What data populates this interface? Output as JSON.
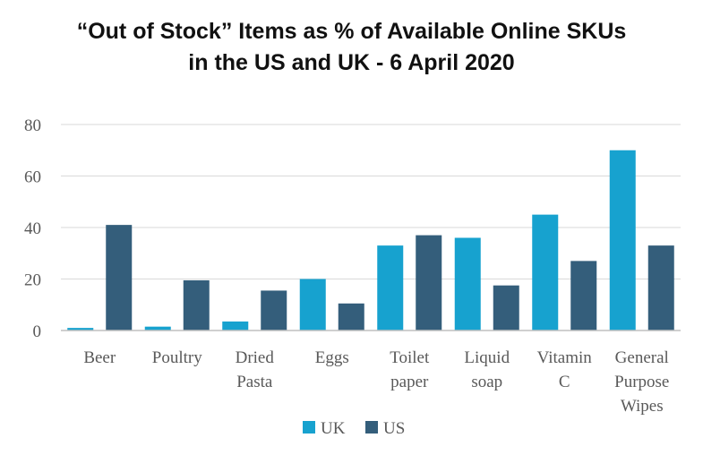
{
  "chart_data": {
    "type": "bar",
    "title_line1": "“Out of Stock” Items as % of Available Online SKUs",
    "title_line2": "in the US and UK - 6 April 2020",
    "categories": [
      [
        "Beer"
      ],
      [
        "Poultry"
      ],
      [
        "Dried",
        "Pasta"
      ],
      [
        "Eggs"
      ],
      [
        "Toilet",
        "paper"
      ],
      [
        "Liquid",
        "soap"
      ],
      [
        "Vitamin",
        "C"
      ],
      [
        "General",
        "Purpose",
        "Wipes"
      ]
    ],
    "series": [
      {
        "name": "UK",
        "color": "#17a2cf",
        "values": [
          1,
          1.5,
          3.5,
          20,
          33,
          36,
          45,
          70
        ]
      },
      {
        "name": "US",
        "color": "#345e7b",
        "values": [
          41,
          19.5,
          15.5,
          10.5,
          37,
          17.5,
          27,
          33
        ]
      }
    ],
    "ylim": [
      0,
      80
    ],
    "yticks": [
      0,
      20,
      40,
      60,
      80
    ],
    "grid": true,
    "legend_position": "bottom"
  }
}
